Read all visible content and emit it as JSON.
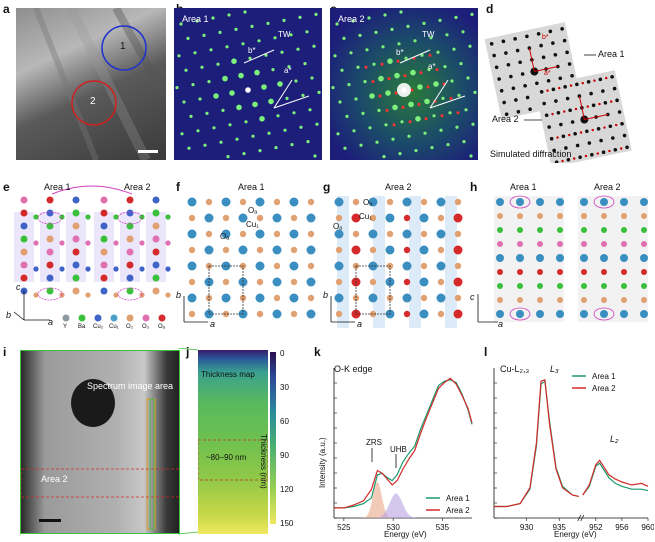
{
  "figure": {
    "panels": {
      "a": {
        "label": "a",
        "circle_1": "1",
        "circle_2": "2"
      },
      "b": {
        "label": "b",
        "area": "Area 1",
        "tw": "TW",
        "b_star": "b*",
        "a_star": "a*"
      },
      "c": {
        "label": "c",
        "area": "Area 2",
        "tw": "TW",
        "b_star": "b*",
        "a_star": "a*"
      },
      "d": {
        "label": "d",
        "area1": "Area 1",
        "area2": "Area 2",
        "caption": "Simulated diffraction",
        "b_star": "b*",
        "a_star": "a*"
      },
      "e": {
        "label": "e",
        "area1": "Area 1",
        "area2": "Area 2",
        "axis_c": "c",
        "axis_b": "b",
        "axis_a": "a",
        "legend": [
          "Y",
          "Ba",
          "Cu₂",
          "Cu₁",
          "O₂",
          "O₃",
          "Oₐ"
        ]
      },
      "f": {
        "label": "f",
        "title": "Area 1",
        "o_label": "Oₐ",
        "cu_label": "Cu₁",
        "o_label2": "Oₐ",
        "axis_b": "b",
        "axis_a": "a"
      },
      "g": {
        "label": "g",
        "title": "Area 2",
        "o_label": "Oₐ",
        "cu_label": "Cu₁",
        "o_label2": "Oₐ",
        "axis_b": "b",
        "axis_a": "a"
      },
      "h": {
        "label": "h",
        "area1": "Area 1",
        "area2": "Area 2",
        "axis_c": "c",
        "axis_a": "a"
      },
      "i": {
        "label": "i",
        "spectrum": "Spectrum image area",
        "area2": "Area 2"
      },
      "j": {
        "label": "j",
        "thickness_map": "Thickness map",
        "range": "~80–90 nm",
        "colorbar_title": "Thickness (nm)",
        "colorbar_ticks": [
          "0",
          "30",
          "60",
          "90",
          "120",
          "150"
        ]
      },
      "k": {
        "label": "k",
        "title": "O-K edge",
        "ylabel": "Intensity (a.u.)",
        "xlabel": "Energy (eV)",
        "zrs": "ZRS",
        "uhb": "UHB",
        "legend": [
          "Area 1",
          "Area 2"
        ]
      },
      "l": {
        "label": "l",
        "title": "Cu-L₂,₃",
        "l3": "L₃",
        "l2": "L₂",
        "xlabel": "Energy (eV)",
        "legend": [
          "Area 1",
          "Area 2"
        ]
      }
    },
    "colors": {
      "area1": "#1a9a6a",
      "area2": "#d42a2a",
      "green_area": "#3cc03c"
    }
  },
  "chart_data": [
    {
      "type": "line",
      "title": "O-K edge",
      "xlabel": "Energy (eV)",
      "ylabel": "Intensity (a.u.)",
      "xlim": [
        524,
        538
      ],
      "ylim": [
        0,
        1
      ],
      "xticks": [
        525,
        530,
        535
      ],
      "series": [
        {
          "name": "Area 1",
          "x": [
            524,
            525,
            526,
            527,
            527.8,
            528.4,
            528.9,
            529.4,
            529.9,
            530.4,
            531,
            531.6,
            532.2,
            532.8,
            533.4,
            534,
            534.6,
            535.2,
            535.8,
            536.4,
            537,
            537.6,
            538
          ],
          "y": [
            0.07,
            0.07,
            0.08,
            0.1,
            0.14,
            0.3,
            0.31,
            0.28,
            0.26,
            0.3,
            0.39,
            0.45,
            0.5,
            0.62,
            0.72,
            0.82,
            0.92,
            0.95,
            0.96,
            0.94,
            0.86,
            0.75,
            0.65
          ]
        },
        {
          "name": "Area 2",
          "x": [
            524,
            525,
            526,
            527,
            527.8,
            528.4,
            528.9,
            529.4,
            529.9,
            530.4,
            531,
            531.6,
            532.2,
            532.8,
            533.4,
            534,
            534.6,
            535.2,
            535.8,
            536.4,
            537,
            537.6,
            538
          ],
          "y": [
            0.07,
            0.07,
            0.09,
            0.12,
            0.2,
            0.33,
            0.31,
            0.27,
            0.23,
            0.26,
            0.34,
            0.41,
            0.47,
            0.59,
            0.7,
            0.8,
            0.9,
            0.94,
            0.97,
            0.93,
            0.85,
            0.76,
            0.66
          ]
        }
      ],
      "fills": [
        {
          "name": "ZRS",
          "center": 528.4,
          "height": 0.25,
          "width": 0.9
        },
        {
          "name": "UHB",
          "center": 530.3,
          "height": 0.17,
          "width": 1.3
        }
      ]
    },
    {
      "type": "line",
      "title": "Cu-L₂,₃",
      "xlabel": "Energy (eV)",
      "xlim": [
        925,
        960
      ],
      "xticks": [
        930,
        935,
        952,
        956,
        960
      ],
      "axis_break": [
        938,
        950
      ],
      "series": [
        {
          "name": "Area 1",
          "x": [
            925,
            927,
            929,
            930.5,
            931.5,
            932.2,
            932.8,
            933.5,
            934.5,
            935.5,
            937,
            938,
            950,
            951,
            952,
            952.6,
            953.3,
            954,
            955,
            956,
            957.5,
            959,
            960
          ],
          "y": [
            0.08,
            0.08,
            0.1,
            0.2,
            0.5,
            0.93,
            0.95,
            0.68,
            0.35,
            0.22,
            0.16,
            0.15,
            0.16,
            0.22,
            0.36,
            0.38,
            0.33,
            0.28,
            0.24,
            0.22,
            0.2,
            0.2,
            0.19
          ]
        },
        {
          "name": "Area 2",
          "x": [
            925,
            927,
            929,
            930.5,
            931.5,
            932.2,
            932.8,
            933.5,
            934.5,
            935.5,
            937,
            938,
            950,
            951,
            952,
            952.6,
            953.3,
            954,
            955,
            956,
            957.5,
            959,
            960
          ],
          "y": [
            0.08,
            0.08,
            0.1,
            0.21,
            0.52,
            0.95,
            0.96,
            0.66,
            0.34,
            0.21,
            0.16,
            0.15,
            0.16,
            0.23,
            0.37,
            0.4,
            0.35,
            0.3,
            0.27,
            0.25,
            0.23,
            0.24,
            0.22
          ]
        }
      ]
    }
  ]
}
